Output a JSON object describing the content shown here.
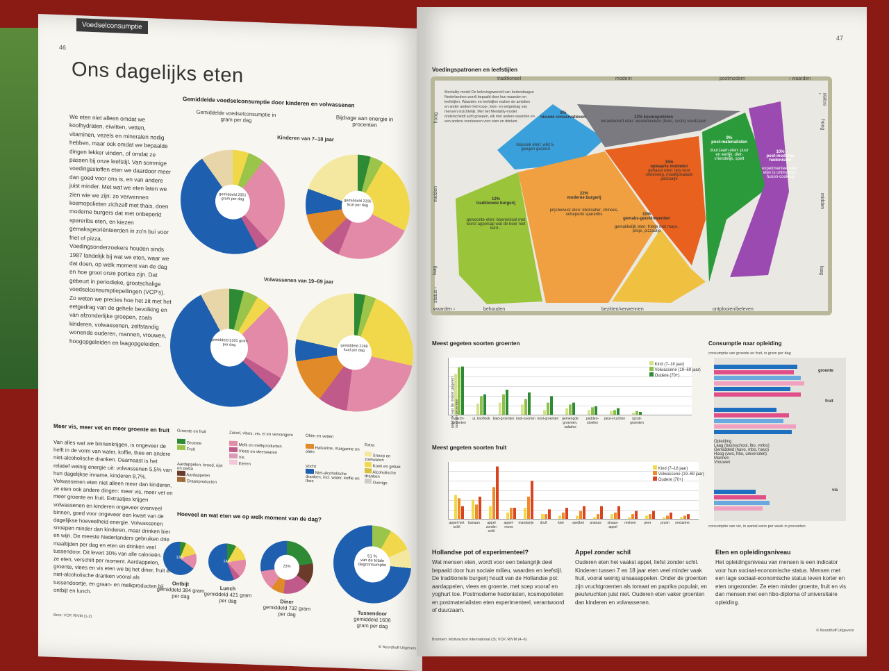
{
  "left_page": {
    "section_tab": "Voedselconsumptie",
    "page_number": "46",
    "title": "Ons dagelijks eten",
    "intro": "We eten niet alleen omdat we koolhydraten, eiwitten, vetten, vitaminen, vezels en mineralen nodig hebben, maar ook omdat we bepaalde dingen lekker vinden, of omdat ze passen bij onze leefstijl. Van sommige voedingsstoffen eten we daardoor meer dan goed voor ons is, en van andere juist minder. Met wat we eten laten we zien wie we zijn: zo verwennen kosmopolieten zichzelf met thais, doen moderne burgers dat met onbeperkt spareribs eten, en kiezen gemaksgeoriënteerden in zo'n bui voor friet of pizza.",
    "intro2": "Voedingsonderzoekers houden sinds 1987 landelijk bij wat we eten, waar we dat doen, op welk moment van de dag en hoe groot onze porties zijn. Dat gebeurt in periodieke, grootschalige voedselconsumptiepeilingen (VCP's). Zo weten we precies hoe het zit met het eetgedrag van de gehele bevolking en van afzonderlijke groepen, zoals kinderen, volwassenen, zelfstandig wonende ouderen, mannen, vrouwen, hoogopgeleiden en laagopgeleiden.",
    "fig1_title": "Gemiddelde voedselconsumptie door kinderen en volwassenen",
    "fig1_col_left": "Gemiddelde voedselconsumptie in gram per dag",
    "fig1_col_right": "Bijdrage aan energie in procenten",
    "kids_label": "Kinderen van 7–18 jaar",
    "adults_label": "Volwassenen van 19–69 jaar",
    "kids_gram": "gemiddeld 2351 gram per dag",
    "kids_kcal": "gemiddeld 2206 kcal per dag",
    "adult_gram": "gemiddeld 3181 gram per dag",
    "adult_kcal": "gemiddeld 2288 kcal per dag",
    "sec12_title": "Meer vis, meer vet en meer groente en fruit",
    "sec12_text": "Van alles wat we binnenkrijgen, is ongeveer de helft in de vorm van water, koffie, thee en andere niet-alcoholische dranken. Daarnaast is het relatief weinig energie uit: volwassenen 5,5% van hun dagelijkse inname, kinderen 8,7%. Volwassenen eten niet alleen meer dan kinderen, ze eten ook andere dingen: meer vis, meer vet en meer groente en fruit. Extraatjes krijgen volwassenen en kinderen ongeveer evenveel binnen, goed voor ongeveer een kwart van de dagelijkse hoeveelheid energie. Volwassenen snoepen minder dan kinderen, maar drinken bier en wijn. De meeste Nederlanders gebruiken drie maaltijden per dag en eten en drinken veel tussendoor. Dit levert 30% van alle calorieën. Wat ze eten, verschilt per moment. Aardappelen, groente, vlees en vis eten we bij het diner, fruit en niet-alcoholische dranken vooral als tussendoortje, en graan- en melkproducten bij ontbijt en lunch.",
    "sec2_title": "Hoeveel en wat eten we op welk moment van de dag?",
    "legend_groups": [
      "Groente en fruit",
      "Zuivel, vlees, vis, ei en vervangers",
      "Oliën en vetten",
      "Extra"
    ],
    "legend_items": [
      "Groente",
      "Fruit",
      "Melk en melkproducten",
      "Vlees en vleeswaren",
      "Vis",
      "Eieren",
      "Halvarine, margarine en oliën",
      "Snoep en zoetwaren",
      "Koek en gebak",
      "Alcoholische dranken",
      "Overige",
      "Aardappelen, brood, rijst en pasta",
      "Aardappelen",
      "Graanproducten",
      "Vocht",
      "Niet-alcoholische dranken, incl. water, koffie en thee"
    ],
    "meals": [
      {
        "name": "Ontbijt",
        "sub": "gemiddeld 384 gram per dag",
        "pct": "12%"
      },
      {
        "name": "Lunch",
        "sub": "gemiddeld 421 gram per dag",
        "pct": "14%"
      },
      {
        "name": "Diner",
        "sub": "gemiddeld 732 gram per dag",
        "pct": "23%"
      },
      {
        "name": "Tussendoor",
        "sub": "gemiddeld 1606 gram per dag",
        "pct": "51 %",
        "pct_sub": "van de totale dagconsumptie"
      }
    ],
    "source": "Bron: VCP, RIVM (1-2)",
    "footer": "© Noordhoff Uitgevers"
  },
  "right_page": {
    "page_number": "47",
    "fig3_title": "Voedingspatronen en leefstijlen",
    "top_axis": [
      "traditioneel",
      "modern",
      "postmodern",
      "› waarden"
    ],
    "bottom_axis": [
      "waarden ›",
      "behouden",
      "bezitten/verwennen",
      "ontplooien/beleven"
    ],
    "left_axis": [
      "hoog",
      "midden",
      "laag",
      "status ›"
    ],
    "right_axis": [
      "status ›",
      "hoog",
      "midden",
      "laag"
    ],
    "mentality_text": "Mentality-model De belevingswereld van hedendaagse Nederlanders wordt bepaald door hun waarden en leefstijlen. Waarden en leefstijlen maken de ambities en ander andere het koop-, kies- en eetgedrag van mensen inzichtelijk. Met het Mentality-model onderscheidt acht groepen, elk met andere waarden en een andere voorkeuren voor eten en drinken.",
    "segments": [
      {
        "pct": "8%",
        "name": "nieuwe conservatieven",
        "food": "klassiek eten: wild 5-gangen gezond"
      },
      {
        "pct": "13%",
        "name": "kosmopolieten",
        "food": "verantwoord eten: wereldkeuken (thais, sushi) voedzaam"
      },
      {
        "pct": "9%",
        "name": "post-materialisten",
        "food": "duurzaam eten: puur en eerlijk, dier-vriendelijk, spelt"
      },
      {
        "pct": "10%",
        "name": "post-moderne hedonisten",
        "food": "experimenteel eten: eten is ontmoeten, fusion-cooking"
      },
      {
        "pct": "15%",
        "name": "opwaarts mobielen",
        "food": "gehaast eten: iets voor onderweg, maaltijdsalade pastaatje"
      },
      {
        "pct": "22%",
        "name": "moderne burgerij",
        "food": "prijsbewust eten: kiloknaller, chinees, onbeperkt spareribs"
      },
      {
        "pct": "13%",
        "name": "traditionele burgerij",
        "food": "gewoonte-eten: boerenkool met worst appelsap wat de boer niet kent..."
      },
      {
        "pct": "10%",
        "name": "gemaks-georiënteerden",
        "food": "gemakkelijk eten: frietje met mayo, pilsje, pizzaatje"
      }
    ],
    "fig4_title": "Meest gegeten soorten groenten",
    "fig4_legend": [
      "Kind (7–18 jaar)",
      "Volwassene (19–69 jaar)",
      "Oudere (70+)"
    ],
    "fig4_ylabel": "gebruik van de meest gegeten soorten groenten",
    "veg_categories": [
      "vrucht-groenten",
      "ui, knoflook",
      "blad-groenten",
      "kool-soorten",
      "knol-groenten",
      "gemengde groenten, salades",
      "padden-stoelen",
      "peul-vruchten",
      "spruit-groenten"
    ],
    "fig5_title": "Meest gegeten soorten fruit",
    "fig5_legend": [
      "Kind (7–18 jaar)",
      "Volwassene (19–69 jaar)",
      "Oudere (70+)"
    ],
    "fruit_categories": [
      "appel met schil",
      "banaan",
      "appel zonder schil",
      "appel-moes",
      "mandarijn",
      "druif",
      "kiwi",
      "aardbei",
      "ananas",
      "sinaas-appel",
      "meloen",
      "peer",
      "pruim",
      "nectarine"
    ],
    "fig6_title": "Consumptie naar opleiding",
    "fig6_topnote": "consumptie van groente en fruit, in gram per dag",
    "fig6_labels": [
      "groente",
      "fruit",
      "vis"
    ],
    "fig6_legend_title": "Opleiding",
    "fig6_legend": [
      "Laag (basisschool, lbo, vmbo)",
      "Gemiddeld (havo, mbo, havo)",
      "Hoog (vwo, hbo, universiteit)",
      "Mannen",
      "Vrouwen"
    ],
    "fig6_bottomnote": "consumptie van vis, in aantal eens per week in procenten",
    "text3_title": "Hollandse pot of experimenteel?",
    "text3": "Wat mensen eten, wordt voor een belangrijk deel bepaald door hun sociale milieu, waarden en leefstijl. De traditionele burgerij houdt van de Hollandse pot: aardappelen, vlees en groente, met soep vooraf en yoghurt toe. Postmoderne hedonisten, kosmopolieten en postmaterialisten eten experimenteel, verantwoord of duurzaam.",
    "text45_title": "Appel zonder schil",
    "text45": "Ouderen eten het vaakst appel, liefst zonder schil. Kinderen tussen 7 en 18 jaar eten veel minder vaak fruit, vooral weinig sinaasappelen. Onder de groenten zijn vruchtgroenten als tomaat en paprika populair, en peulvruchten juist niet. Ouderen eten vaker groenten dan kinderen en volwassenen.",
    "text6_title": "Eten en opleidingsniveau",
    "text6": "Het opleidingsniveau van mensen is een indicator voor hun sociaal-economische status. Mensen met een lage sociaal-economische status leven korter en eten ongezonder. Ze eten minder groente, fruit en vis dan mensen met een hbo-diploma of universitaire opleiding.",
    "sources": "Bronnen: Motivaction International (3); VCP, RIVM (4–6)",
    "footer": "© Noordhoff Uitgevers"
  },
  "chart_veg": {
    "type": "bar",
    "categories": [
      "vrucht-groenten",
      "ui, knoflook",
      "blad-groenten",
      "kool-soorten",
      "knol-groenten",
      "gemengde groenten, salades",
      "padden-stoelen",
      "peul-vruchten",
      "spruit-groenten"
    ],
    "series": [
      {
        "name": "Kind (7–18 jaar)",
        "values": [
          44,
          12,
          13,
          11,
          5,
          7,
          5,
          4,
          2
        ]
      },
      {
        "name": "Volwassene (19–69 jaar)",
        "values": [
          51,
          20,
          22,
          17,
          13,
          11,
          8,
          5,
          4
        ]
      },
      {
        "name": "Oudere (70+)",
        "values": [
          52,
          22,
          27,
          24,
          20,
          13,
          9,
          7,
          3
        ]
      }
    ],
    "ylim": [
      0,
      60
    ]
  },
  "chart_fruit": {
    "type": "bar",
    "categories": [
      "appel met schil",
      "banaan",
      "appel zonder schil",
      "appel-moes",
      "mandarijn",
      "druif",
      "kiwi",
      "aardbei",
      "ananas",
      "sinaas-appel",
      "meloen",
      "peer",
      "pruim",
      "nectarine"
    ],
    "series": [
      {
        "name": "Kind (7–18 jaar)",
        "values": [
          15,
          12,
          8,
          4,
          7,
          3,
          2,
          2,
          1,
          3,
          1,
          2,
          1,
          1
        ]
      },
      {
        "name": "Volwassene (19–69 jaar)",
        "values": [
          13,
          9,
          20,
          7,
          14,
          3,
          4,
          5,
          3,
          4,
          3,
          3,
          2,
          2
        ]
      },
      {
        "name": "Oudere (70+)",
        "values": [
          8,
          14,
          33,
          7,
          24,
          6,
          7,
          8,
          8,
          8,
          5,
          5,
          4,
          3
        ]
      }
    ],
    "ylim": [
      0,
      35
    ]
  },
  "colors": {
    "veg1": "#d4e38a",
    "veg2": "#8dc04a",
    "veg3": "#2e8a34",
    "fr1": "#f0d84a",
    "fr2": "#ee8a2a",
    "fr3": "#d9431e"
  }
}
